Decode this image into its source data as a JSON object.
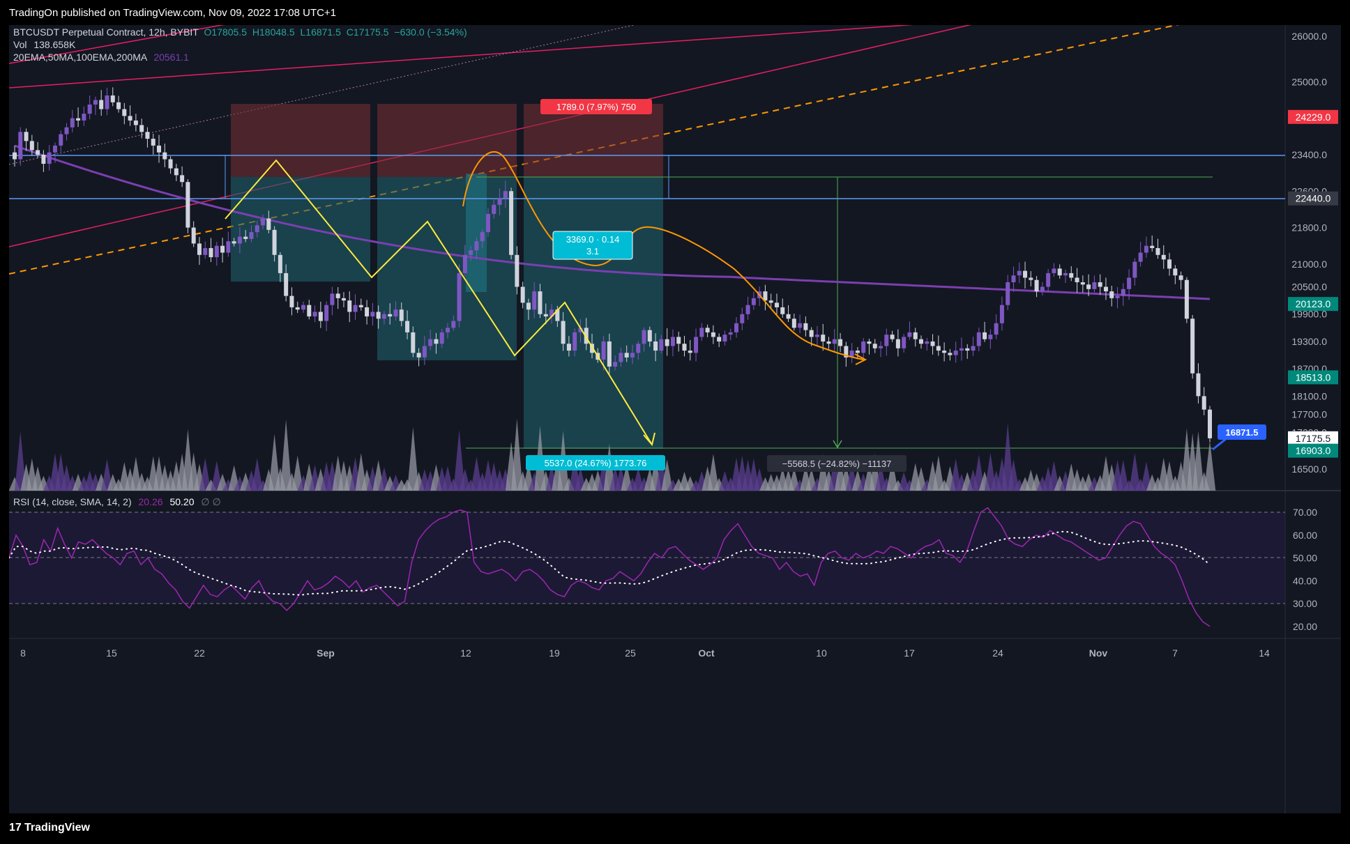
{
  "header": {
    "published": "TradingOn published on TradingView.com, Nov 09, 2022 17:08 UTC+1"
  },
  "footer": {
    "brand": "TradingView"
  },
  "legend": {
    "symbol": "BTCUSDT Perpetual Contract, 12h, BYBIT",
    "open": "O17805.5",
    "high": "H18048.5",
    "low": "L16871.5",
    "close": "C17175.5",
    "change": "−630.0 (−3.54%)",
    "vol_label": "Vol",
    "vol_value": "138.658K",
    "ma_label": "20EMA,50MA,100EMA,200MA",
    "ma_value": "20561.1",
    "rsi_label": "RSI (14, close, SMA, 14, 2)",
    "rsi_value": "20.26",
    "rsi_sma": "50.20",
    "rsi_extra": "∅  ∅"
  },
  "annotations": {
    "short_top": "1789.0 (7.97%) 750",
    "mid_box_line1": "3369.0 · 0.14",
    "mid_box_line2": "3.1",
    "target_move": "5537.0 (24.67%) 1773.76",
    "measure": "−5568.5 (−24.82%) −11137"
  },
  "colors": {
    "background": "#131722",
    "up": "#7e57c2",
    "down": "#d1d4dc",
    "ma200": "#7b3fb0",
    "level_line": "#5b9cf6",
    "pink_channel": "#e91e63",
    "orange": "#ff9800",
    "yellow": "#ffeb3b",
    "green": "#4caf50",
    "red_label": "#f23645",
    "cyan": "#26c6da",
    "blue_label": "#2962ff"
  },
  "chart_data": {
    "type": "candlestick",
    "symbol": "BTCUSDT Perpetual Contract",
    "interval": "12h",
    "price_axis_ticks": [
      26000,
      25000,
      24200,
      23400,
      22600,
      21800,
      21000,
      20500,
      19900,
      19300,
      18700,
      18100,
      17700,
      17300,
      16500
    ],
    "price_axis_labels": [
      "26000.0",
      "25000.0",
      "24200.0",
      "23400.0",
      "22600.0",
      "21800.0",
      "21000.0",
      "20500.0",
      "19900.0",
      "19300.0",
      "18700.0",
      "18100.0",
      "17700.0",
      "17300.0",
      "16500.0"
    ],
    "price_markers": [
      {
        "label": "24229.0",
        "price": 24229,
        "color": "#f23645"
      },
      {
        "label": "22440.0",
        "price": 22440,
        "color": "#363a45"
      },
      {
        "label": "20123.0",
        "price": 20123,
        "color": "#00897b"
      },
      {
        "label": "18513.0",
        "price": 18513,
        "color": "#00897b"
      },
      {
        "label": "17175.5",
        "price": 17175.5,
        "color": "#ffffff"
      },
      {
        "label": "16903.0",
        "price": 16903,
        "color": "#00897b"
      }
    ],
    "last_low_marker": "16871.5",
    "x_axis_labels": [
      "8",
      "15",
      "22",
      "Sep",
      "12",
      "19",
      "25",
      "Oct",
      "10",
      "17",
      "24",
      "Nov",
      "7",
      "14"
    ],
    "candles_close": [
      23300,
      23900,
      23700,
      23500,
      23400,
      23200,
      23450,
      23600,
      23850,
      24000,
      24200,
      24150,
      24300,
      24500,
      24600,
      24400,
      24700,
      24550,
      24400,
      24250,
      24150,
      24050,
      23900,
      23750,
      23600,
      23450,
      23300,
      23100,
      22950,
      22800,
      21800,
      21450,
      21200,
      21350,
      21150,
      21400,
      21250,
      21500,
      21450,
      21600,
      21550,
      21700,
      21850,
      22000,
      21750,
      21200,
      20800,
      20300,
      20050,
      20000,
      20100,
      19850,
      19950,
      19750,
      20100,
      20350,
      20250,
      20200,
      19950,
      20100,
      20050,
      19850,
      19950,
      19800,
      19900,
      19850,
      20000,
      19750,
      19500,
      19050,
      18950,
      19200,
      19350,
      19250,
      19500,
      19600,
      19750,
      20800,
      21200,
      21300,
      21500,
      21700,
      22100,
      22300,
      22440,
      22600,
      21200,
      20500,
      20150,
      20000,
      20400,
      19900,
      19850,
      20000,
      19750,
      19250,
      19100,
      19500,
      19600,
      19250,
      19050,
      18900,
      19300,
      18750,
      18850,
      19050,
      18950,
      19050,
      19250,
      19550,
      19300,
      19100,
      19350,
      19200,
      19400,
      19250,
      19100,
      19050,
      19400,
      19600,
      19500,
      19400,
      19300,
      19450,
      19500,
      19700,
      19900,
      20100,
      20250,
      20400,
      20200,
      20150,
      20050,
      19900,
      19800,
      19600,
      19700,
      19550,
      19400,
      19450,
      19300,
      19250,
      19350,
      19200,
      18950,
      19100,
      19050,
      19300,
      19250,
      19150,
      19200,
      19450,
      19350,
      19150,
      19400,
      19500,
      19350,
      19250,
      19300,
      19200,
      19100,
      19050,
      19000,
      19100,
      19150,
      19100,
      19200,
      19500,
      19350,
      19450,
      19700,
      20100,
      20600,
      20750,
      20850,
      20700,
      20650,
      20400,
      20500,
      20800,
      20900,
      20750,
      20800,
      20700,
      20600,
      20550,
      20450,
      20600,
      20500,
      20400,
      20250,
      20300,
      20450,
      20700,
      21050,
      21250,
      21400,
      21350,
      21200,
      21100,
      20900,
      20750,
      20650,
      19800,
      18600,
      18100,
      17805,
      17175
    ],
    "ma200_label_value": 20561.1,
    "volume_label": "138.658K",
    "rsi": {
      "settings": "RSI (14, close, SMA, 14, 2)",
      "value": 20.26,
      "sma": 50.2,
      "axis_ticks": [
        70,
        60,
        50,
        40,
        30,
        20
      ],
      "axis_labels": [
        "70.00",
        "60.00",
        "50.00",
        "40.00",
        "30.00",
        "20.00"
      ],
      "band_upper": 70,
      "band_mid": 50,
      "band_lower": 30,
      "values": [
        50,
        60,
        55,
        47,
        48,
        58,
        53,
        63,
        56,
        50,
        57,
        56,
        58,
        55,
        52,
        50,
        47,
        52,
        53,
        47,
        50,
        45,
        43,
        39,
        36,
        31,
        28,
        33,
        38,
        34,
        33,
        36,
        38,
        35,
        32,
        37,
        40,
        34,
        31,
        30,
        27,
        30,
        35,
        40,
        36,
        37,
        39,
        42,
        40,
        37,
        40,
        35,
        37,
        38,
        35,
        32,
        29,
        31,
        48,
        58,
        62,
        65,
        67,
        68,
        70,
        71,
        70,
        48,
        44,
        43,
        44,
        45,
        43,
        40,
        44,
        45,
        43,
        40,
        36,
        34,
        33,
        38,
        40,
        39,
        37,
        36,
        40,
        41,
        44,
        42,
        40,
        43,
        48,
        52,
        50,
        54,
        55,
        52,
        49,
        47,
        45,
        47,
        50,
        58,
        62,
        65,
        60,
        55,
        52,
        51,
        50,
        45,
        48,
        44,
        42,
        43,
        38,
        48,
        52,
        53,
        50,
        49,
        52,
        50,
        51,
        53,
        52,
        55,
        54,
        52,
        50,
        53,
        55,
        56,
        58,
        52,
        51,
        48,
        53,
        62,
        70,
        72,
        68,
        64,
        58,
        56,
        55,
        58,
        60,
        59,
        62,
        60,
        58,
        57,
        55,
        53,
        51,
        49,
        50,
        55,
        60,
        64,
        66,
        65,
        60,
        55,
        52,
        50,
        47,
        40,
        32,
        26,
        22,
        20
      ]
    }
  }
}
